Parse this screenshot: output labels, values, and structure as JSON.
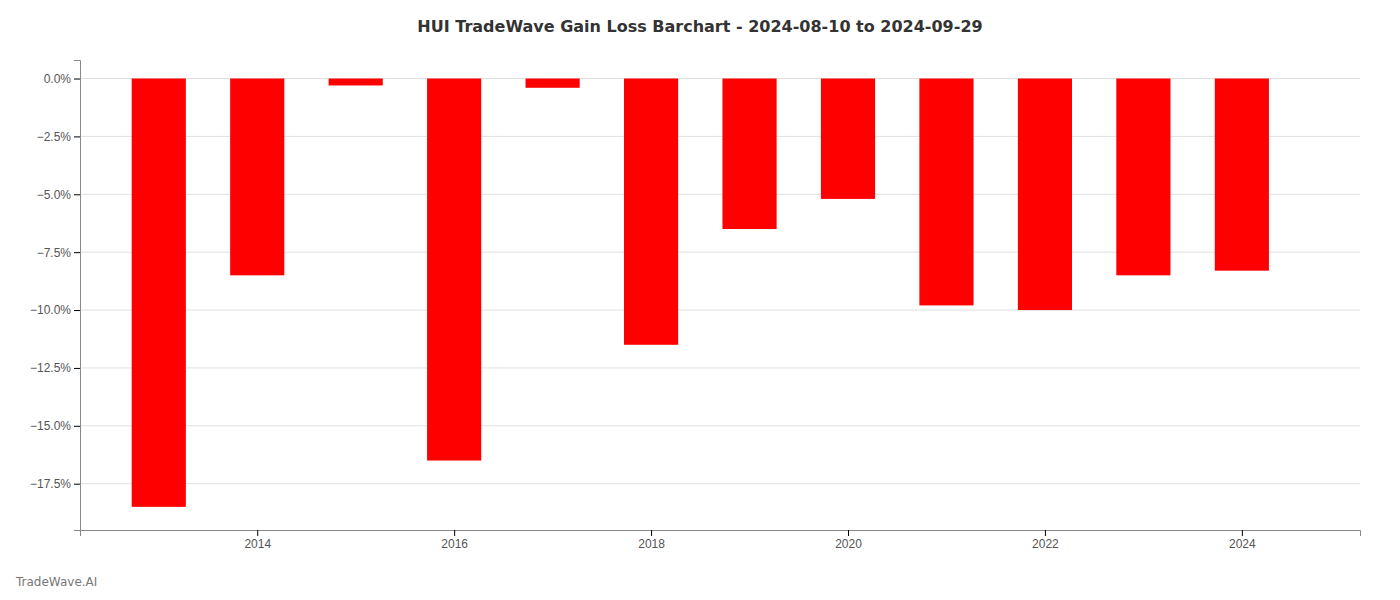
{
  "chart_data": {
    "type": "bar",
    "title": "HUI TradeWave Gain Loss Barchart - 2024-08-10 to 2024-09-29",
    "annotations": [
      "TradeWave.AI"
    ],
    "x": [
      2013,
      2014,
      2015,
      2016,
      2017,
      2018,
      2019,
      2020,
      2021,
      2022,
      2023,
      2024
    ],
    "values": [
      -18.5,
      -8.5,
      -0.3,
      -16.5,
      -0.4,
      -11.5,
      -6.5,
      -5.2,
      -9.8,
      -10.0,
      -8.5,
      -8.3
    ],
    "color": "#ff0000",
    "xlim": [
      2012.2,
      2025.2
    ],
    "xticks": [
      2014,
      2016,
      2018,
      2020,
      2022,
      2024
    ],
    "ylim": [
      -19.5,
      0.8
    ],
    "yticks": [
      {
        "value": 0.0,
        "label": "0.0%"
      },
      {
        "value": -2.5,
        "label": "−2.5%"
      },
      {
        "value": -5.0,
        "label": "−5.0%"
      },
      {
        "value": -7.5,
        "label": "−7.5%"
      },
      {
        "value": -10.0,
        "label": "−10.0%"
      },
      {
        "value": -12.5,
        "label": "−12.5%"
      },
      {
        "value": -15.0,
        "label": "−15.0%"
      },
      {
        "value": -17.5,
        "label": "−17.5%"
      }
    ],
    "grid": true
  }
}
